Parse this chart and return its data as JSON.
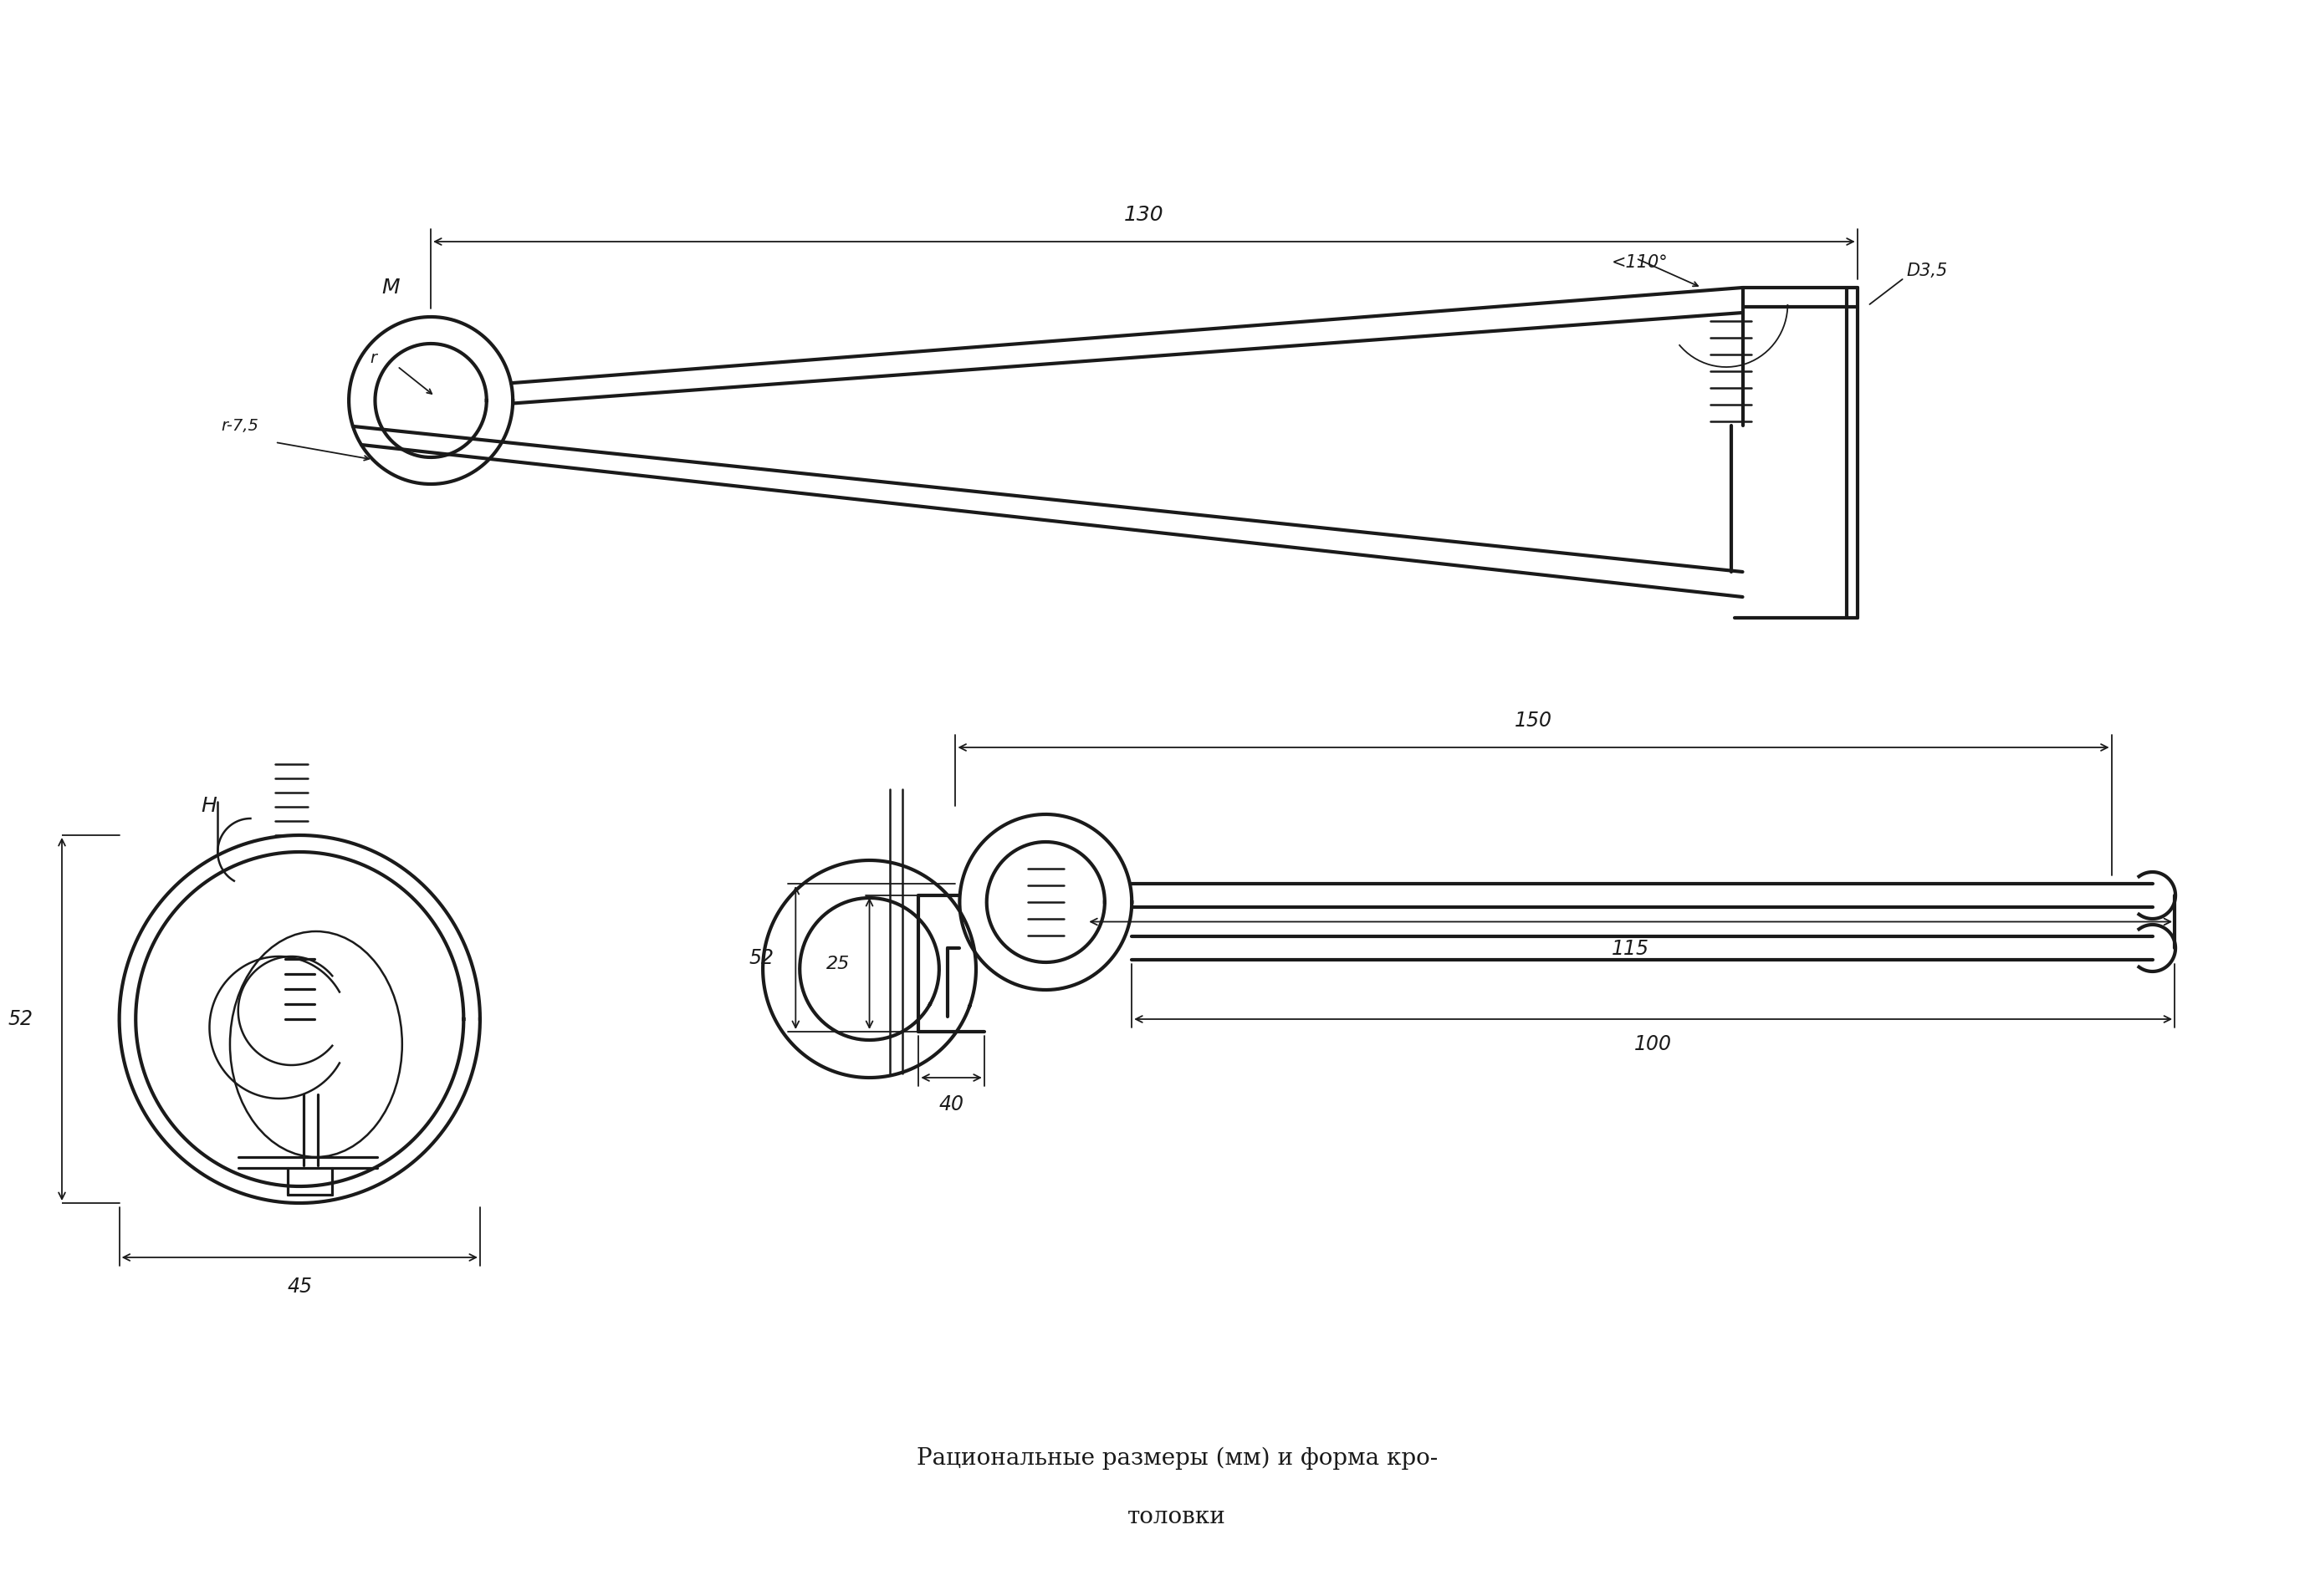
{
  "title_line1": "Рациональные размеры (мм) и форма кро-",
  "title_line2": "толовки",
  "bg_color": "#ffffff",
  "line_color": "#1a1a1a",
  "lw_main": 3.0,
  "lw_dim": 1.3,
  "lw_thin": 1.8,
  "font_size_dim": 16,
  "font_size_label": 18,
  "font_size_title": 20,
  "annotations": {
    "dim_130": "130",
    "dim_r75": "r-7,5",
    "dim_r": "r",
    "dim_110": "<110°",
    "dim_D35": "D3,5",
    "dim_150": "150",
    "dim_115": "115",
    "dim_100": "100",
    "dim_52_left": "52",
    "dim_52_mid": "52",
    "dim_25": "25",
    "dim_45": "45",
    "dim_40": "40",
    "label_M": "М",
    "label_H": "Н"
  }
}
